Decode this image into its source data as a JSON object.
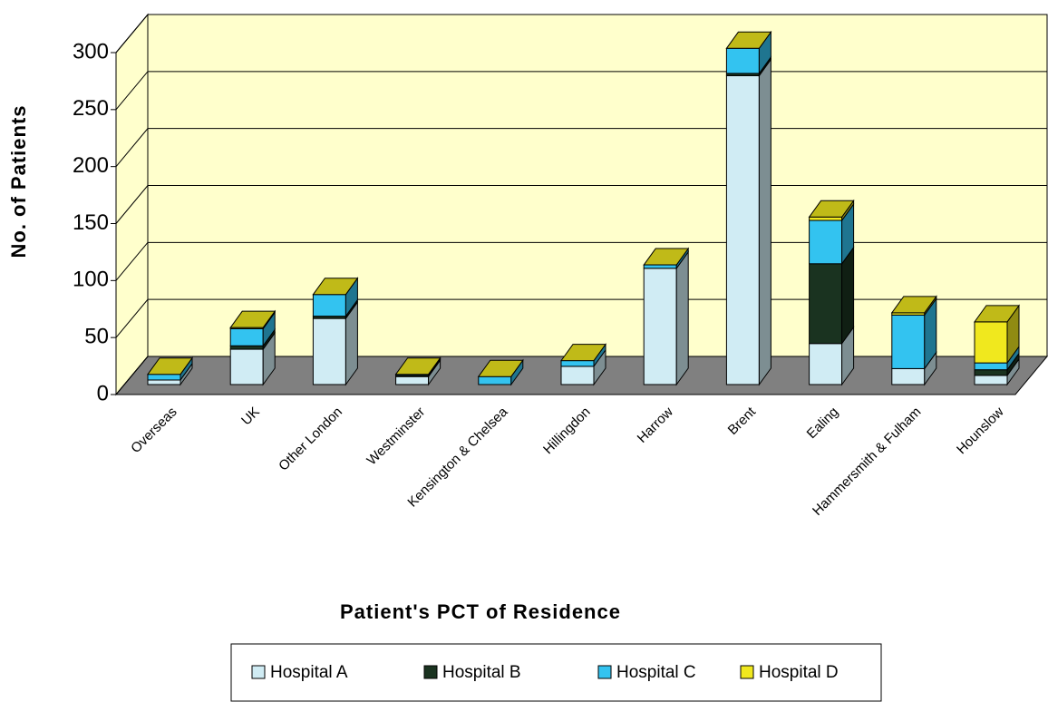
{
  "chart_data": {
    "type": "bar3d_stacked",
    "x_label": "Patient's PCT of Residence",
    "y_label": "No. of Patients",
    "categories": [
      "Overseas",
      "UK",
      "Other London",
      "Westminster",
      "Kensington & Chelsea",
      "Hillingdon",
      "Harrow",
      "Brent",
      "Ealing",
      "Hammersmith  & Fulham",
      "Hounslow"
    ],
    "series": [
      {
        "name": "Hospital A",
        "color": "#d0ecf4",
        "values": [
          4,
          31,
          58,
          7,
          0,
          16,
          102,
          271,
          36,
          14,
          8
        ]
      },
      {
        "name": "Hospital B",
        "color": "#1a3320",
        "values": [
          0,
          3,
          2,
          1,
          0,
          0,
          0,
          2,
          70,
          0,
          5
        ]
      },
      {
        "name": "Hospital C",
        "color": "#33c3f0",
        "values": [
          5,
          15,
          19,
          1,
          7,
          5,
          3,
          22,
          38,
          47,
          6
        ]
      },
      {
        "name": "Hospital D",
        "color": "#f0e81e",
        "values": [
          0,
          1,
          0,
          0,
          0,
          0,
          0,
          0,
          3,
          2,
          36
        ]
      }
    ],
    "ylim": [
      0,
      300
    ],
    "yticks": [
      0,
      50,
      100,
      150,
      200,
      250,
      300
    ],
    "grid": true
  }
}
